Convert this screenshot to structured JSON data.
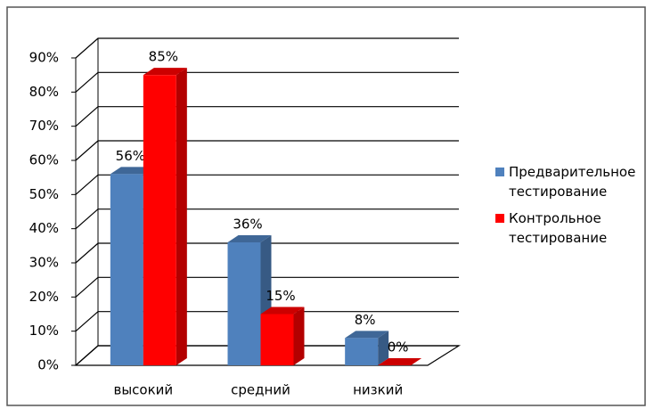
{
  "chart_data": {
    "type": "bar3d",
    "categories": [
      "высокий",
      "средний",
      "низкий"
    ],
    "series": [
      {
        "name": "Предварительное тестирование",
        "color": "#4f81bd",
        "values": [
          56,
          36,
          8
        ],
        "value_labels": [
          "56%",
          "36%",
          "8%"
        ]
      },
      {
        "name": "Контрольное тестирование",
        "color": "#ff0000",
        "values": [
          85,
          15,
          0
        ],
        "value_labels": [
          "85%",
          "15%",
          "0%"
        ]
      }
    ],
    "ylim": [
      0,
      90
    ],
    "yticks": [
      {
        "value": 0,
        "label": "0%"
      },
      {
        "value": 10,
        "label": "10%"
      },
      {
        "value": 20,
        "label": "20%"
      },
      {
        "value": 30,
        "label": "30%"
      },
      {
        "value": 40,
        "label": "40%"
      },
      {
        "value": 50,
        "label": "50%"
      },
      {
        "value": 60,
        "label": "60%"
      },
      {
        "value": 70,
        "label": "70%"
      },
      {
        "value": 80,
        "label": "80%"
      },
      {
        "value": 90,
        "label": "90%"
      }
    ],
    "grid": true,
    "legend": "right"
  }
}
